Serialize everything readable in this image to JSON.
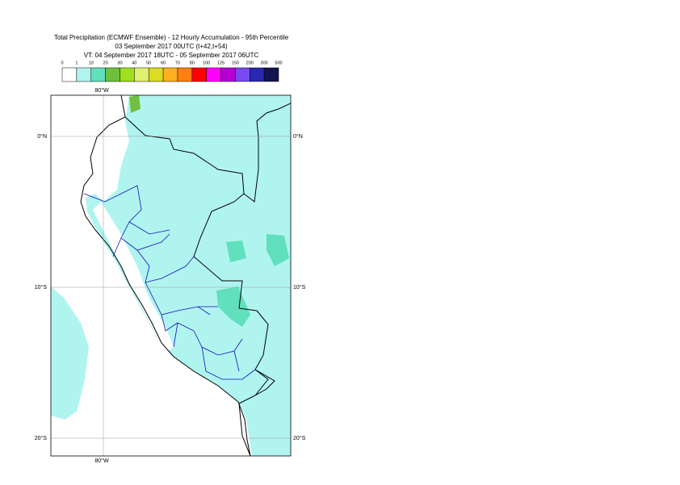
{
  "header": {
    "title": "Total Precipitation (ECMWF Ensemble) - 12 Hourly Accumulation - 95th Percentile",
    "base_time": "03 September 2017 00UTC (t+42,t+54)",
    "valid_time": "VT: 04 September 2017 18UTC - 05 September 2017 06UTC"
  },
  "legend": {
    "ticks": [
      0,
      1,
      10,
      20,
      30,
      40,
      50,
      60,
      70,
      80,
      100,
      125,
      150,
      200,
      300,
      500
    ],
    "colors": [
      "#ffffff",
      "#b0f4f0",
      "#60e0bc",
      "#70c040",
      "#9ee020",
      "#e0f070",
      "#dcdc20",
      "#ffb020",
      "#ff8010",
      "#ff0000",
      "#ff00ff",
      "#b400d0",
      "#7848f0",
      "#2828b0",
      "#141450"
    ]
  },
  "map": {
    "lon_top": "80°W",
    "lon_bottom": "80°W",
    "lat_left": [
      "0°N",
      "10°S",
      "20°S"
    ],
    "lat_right": [
      "0°N",
      "10°S",
      "20°S"
    ]
  }
}
